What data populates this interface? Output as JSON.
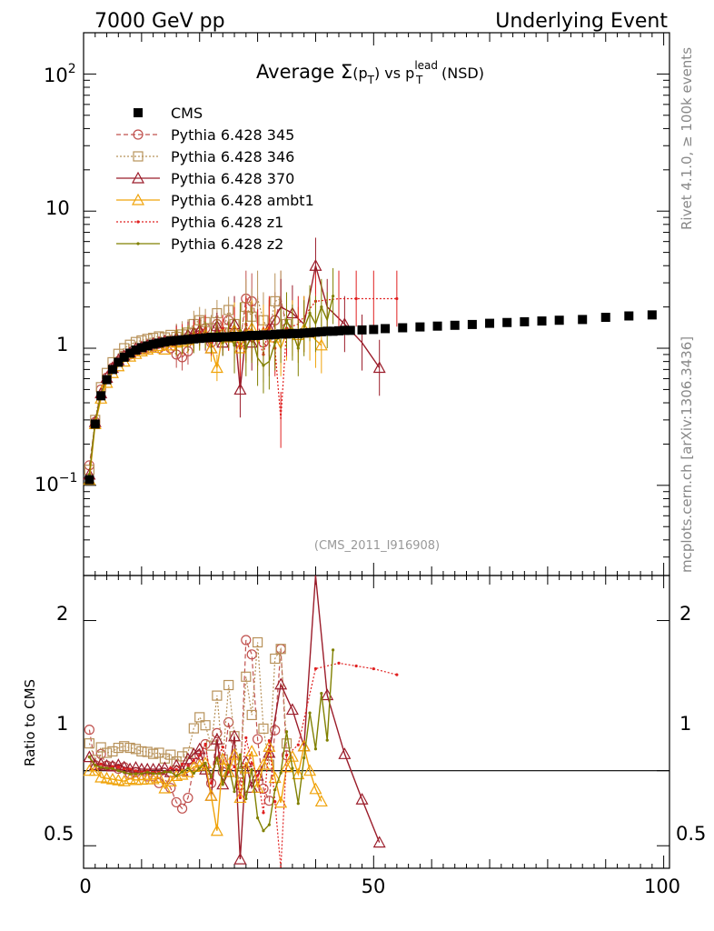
{
  "header": {
    "left": "7000 GeV pp",
    "right": "Underlying Event"
  },
  "side": {
    "rivet": "Rivet 4.1.0, ≥ 100k events",
    "mcplots": "mcplots.cern.ch [arXiv:1306.3436]"
  },
  "chart_data": {
    "type": "line",
    "title": "Average Σ(pT) vs pT lead (NSD)",
    "title_parts": {
      "prefix": "Average ",
      "sigma": "Σ",
      "open": "(p",
      "sub_t": "T",
      "close": ")",
      "vs": " vs p",
      "sup_lead": "lead",
      "sub_t2": "T",
      "nsd": " (NSD)"
    },
    "analysis_id": "(CMS_2011_I916908)",
    "xlabel": "",
    "ylabel_ratio": "Ratio to CMS",
    "xlim": [
      0,
      101
    ],
    "ylim": [
      0.022,
      200
    ],
    "yscale": "log",
    "ratio_ylim": [
      0.35,
      2.3
    ],
    "x_ticks": [
      "0",
      "50",
      "100"
    ],
    "y_ticks": {
      "hundred": "10",
      "hundred_exp": "2",
      "ten": "10",
      "one": "1",
      "tenth": "10",
      "tenth_exp": "−1"
    },
    "ratio_ticks": [
      "2",
      "1",
      "0.5"
    ],
    "legend_position": "top-left",
    "series": [
      {
        "name": "CMS",
        "color": "#000000",
        "style": "marker-square",
        "x": [
          1.0,
          2.0,
          3.0,
          4.0,
          5.0,
          6.0,
          7.0,
          8.0,
          9.0,
          10.0,
          11.0,
          12.0,
          13.0,
          14.0,
          15.0,
          16.0,
          17.0,
          18.0,
          19.0,
          20.0,
          21.0,
          22.0,
          23.0,
          24.0,
          25.0,
          26.0,
          27.0,
          28.0,
          29.0,
          30.0,
          31.0,
          32.0,
          33.0,
          34.0,
          35.0,
          36.0,
          37.0,
          38.0,
          39.0,
          40.0,
          41.0,
          42.0,
          43.0,
          44.0,
          45.0,
          46.0,
          48.0,
          50.0,
          52.0,
          55.0,
          58.0,
          61.0,
          64.0,
          67.0,
          70.0,
          73.0,
          76.0,
          79.0,
          82.0,
          86.0,
          90.0,
          94.0,
          98.0
        ],
        "y": [
          0.11,
          0.28,
          0.45,
          0.59,
          0.7,
          0.79,
          0.86,
          0.92,
          0.97,
          1.01,
          1.04,
          1.07,
          1.09,
          1.11,
          1.13,
          1.14,
          1.15,
          1.16,
          1.17,
          1.18,
          1.19,
          1.2,
          1.2,
          1.21,
          1.21,
          1.22,
          1.22,
          1.23,
          1.24,
          1.24,
          1.25,
          1.25,
          1.26,
          1.27,
          1.27,
          1.28,
          1.28,
          1.29,
          1.3,
          1.31,
          1.32,
          1.33,
          1.33,
          1.34,
          1.35,
          1.35,
          1.36,
          1.37,
          1.39,
          1.41,
          1.43,
          1.45,
          1.47,
          1.49,
          1.52,
          1.54,
          1.56,
          1.58,
          1.6,
          1.62,
          1.68,
          1.72,
          1.75
        ]
      },
      {
        "name": "Pythia 6.428 345",
        "color": "#c0504d",
        "style": "dashed-circle",
        "x": [
          1,
          2,
          3,
          4,
          5,
          6,
          7,
          8,
          9,
          10,
          11,
          12,
          13,
          14,
          15,
          16,
          17,
          18,
          19,
          20,
          21,
          22,
          23,
          24,
          25,
          26,
          27,
          28,
          29,
          30,
          31,
          32,
          33,
          34,
          35
        ],
        "y": [
          0.14,
          0.29,
          0.5,
          0.61,
          0.72,
          0.8,
          0.88,
          0.9,
          0.96,
          0.98,
          1.0,
          1.03,
          1.0,
          1.05,
          1.0,
          0.9,
          0.86,
          0.95,
          1.2,
          1.3,
          1.4,
          1.1,
          1.5,
          1.2,
          1.6,
          1.3,
          1.1,
          2.3,
          2.2,
          1.5,
          1.1,
          1.0,
          1.6,
          2.3,
          1.4
        ]
      },
      {
        "name": "Pythia 6.428 346",
        "color": "#b8925a",
        "style": "dotted-square",
        "x": [
          1,
          2,
          3,
          4,
          5,
          6,
          7,
          8,
          9,
          10,
          11,
          12,
          13,
          14,
          15,
          16,
          17,
          18,
          19,
          20,
          21,
          22,
          23,
          24,
          25,
          26,
          27,
          28,
          29,
          30,
          31,
          32,
          33,
          34,
          35
        ],
        "y": [
          0.13,
          0.3,
          0.52,
          0.66,
          0.79,
          0.91,
          1.0,
          1.06,
          1.11,
          1.14,
          1.17,
          1.19,
          1.22,
          1.2,
          1.25,
          1.21,
          1.26,
          1.3,
          1.5,
          1.6,
          1.55,
          1.4,
          1.8,
          1.3,
          1.9,
          1.5,
          1.2,
          2.0,
          1.7,
          2.3,
          1.6,
          1.3,
          2.2,
          2.3,
          1.5
        ]
      },
      {
        "name": "Pythia 6.428 370",
        "color": "#9b1c2a",
        "style": "solid-triangle",
        "x": [
          1,
          2,
          3,
          4,
          5,
          6,
          7,
          8,
          9,
          10,
          11,
          12,
          13,
          14,
          15,
          16,
          17,
          18,
          19,
          20,
          21,
          22,
          23,
          24,
          25,
          26,
          27,
          28,
          29,
          30,
          32,
          34,
          36,
          38,
          40,
          42,
          45,
          48,
          51
        ],
        "y": [
          0.12,
          0.29,
          0.47,
          0.61,
          0.72,
          0.82,
          0.88,
          0.93,
          0.99,
          1.02,
          1.05,
          1.08,
          1.1,
          1.13,
          1.12,
          1.18,
          1.15,
          1.25,
          1.3,
          1.35,
          1.2,
          1.0,
          1.45,
          1.1,
          1.2,
          1.5,
          0.5,
          1.3,
          1.1,
          1.2,
          1.4,
          2.0,
          1.8,
          1.5,
          4.0,
          2.0,
          1.5,
          1.1,
          0.72
        ]
      },
      {
        "name": "Pythia 6.428 ambt1",
        "color": "#f0a30a",
        "style": "solid-triangle",
        "x": [
          1,
          2,
          3,
          4,
          5,
          6,
          7,
          8,
          9,
          10,
          11,
          12,
          13,
          14,
          15,
          16,
          17,
          18,
          19,
          20,
          21,
          22,
          23,
          24,
          25,
          26,
          27,
          28,
          29,
          30,
          31,
          32,
          33,
          34,
          35,
          36,
          37,
          38,
          39,
          40,
          41
        ],
        "y": [
          0.11,
          0.28,
          0.43,
          0.56,
          0.66,
          0.74,
          0.8,
          0.87,
          0.91,
          0.95,
          0.98,
          1.01,
          1.04,
          0.98,
          1.05,
          1.1,
          1.12,
          1.15,
          1.2,
          1.22,
          1.25,
          1.0,
          0.72,
          1.3,
          1.2,
          1.35,
          1.0,
          1.25,
          1.4,
          1.1,
          1.3,
          1.45,
          1.2,
          1.0,
          1.3,
          1.4,
          1.25,
          1.5,
          1.3,
          1.15,
          1.05
        ]
      },
      {
        "name": "Pythia 6.428 z1",
        "color": "#e02020",
        "style": "dotted-dot",
        "x": [
          1,
          2,
          3,
          4,
          5,
          6,
          7,
          8,
          9,
          10,
          11,
          12,
          13,
          14,
          15,
          16,
          17,
          18,
          19,
          20,
          21,
          22,
          23,
          24,
          25,
          26,
          27,
          28,
          29,
          30,
          31,
          32,
          33,
          34,
          35,
          37,
          40,
          44,
          47,
          50,
          54
        ],
        "y": [
          0.12,
          0.29,
          0.47,
          0.6,
          0.72,
          0.81,
          0.87,
          0.93,
          0.97,
          1.0,
          1.04,
          1.06,
          1.08,
          1.1,
          1.15,
          1.15,
          1.2,
          1.2,
          1.25,
          1.3,
          1.4,
          1.1,
          1.3,
          1.4,
          1.2,
          1.25,
          1.0,
          1.5,
          1.3,
          1.2,
          0.9,
          1.5,
          1.0,
          0.3,
          1.4,
          1.5,
          2.2,
          2.3,
          2.3,
          2.3,
          2.3
        ]
      },
      {
        "name": "Pythia 6.428 z2",
        "color": "#808000",
        "style": "solid-dot",
        "x": [
          1,
          2,
          3,
          4,
          5,
          6,
          7,
          8,
          9,
          10,
          11,
          12,
          13,
          14,
          15,
          16,
          17,
          18,
          19,
          20,
          21,
          22,
          23,
          24,
          25,
          26,
          27,
          28,
          29,
          30,
          31,
          32,
          33,
          34,
          35,
          36,
          37,
          38,
          39,
          40,
          41,
          42,
          43
        ],
        "y": [
          0.12,
          0.29,
          0.46,
          0.6,
          0.71,
          0.79,
          0.85,
          0.9,
          0.95,
          0.99,
          1.03,
          1.05,
          1.07,
          1.1,
          1.12,
          1.1,
          1.14,
          1.18,
          1.15,
          1.2,
          1.25,
          1.15,
          1.3,
          1.1,
          1.25,
          1.05,
          1.35,
          1.0,
          1.25,
          0.85,
          0.75,
          0.8,
          1.1,
          1.25,
          1.6,
          1.3,
          1.0,
          1.4,
          1.8,
          1.5,
          2.0,
          1.6,
          2.4
        ]
      }
    ]
  }
}
